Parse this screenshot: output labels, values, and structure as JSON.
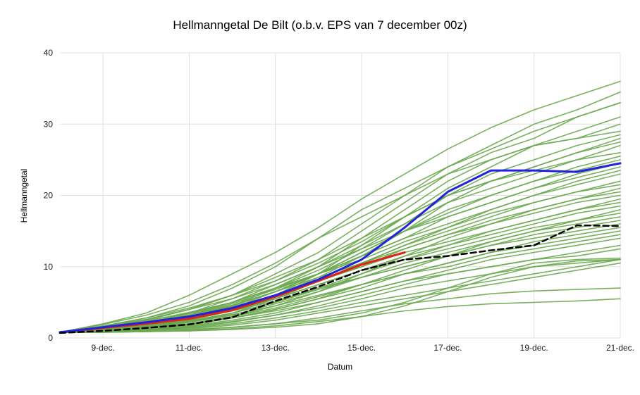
{
  "chart_data": {
    "type": "line",
    "title": "Hellmanngetal De Bilt (o.b.v. EPS van 7 december 00z)",
    "xlabel": "Datum",
    "ylabel": "Hellmanngetal",
    "xlim": [
      8,
      21
    ],
    "ylim": [
      0,
      40
    ],
    "grid": true,
    "legend_position": "none",
    "grid_color": "#e0e0e0",
    "tick_color": "#222222",
    "x_ticks": [
      {
        "value": 9,
        "label": "9-dec."
      },
      {
        "value": 11,
        "label": "11-dec."
      },
      {
        "value": 13,
        "label": "13-dec."
      },
      {
        "value": 15,
        "label": "15-dec."
      },
      {
        "value": 17,
        "label": "17-dec."
      },
      {
        "value": 19,
        "label": "19-dec."
      },
      {
        "value": 21,
        "label": "21-dec."
      }
    ],
    "y_ticks": [
      0,
      10,
      20,
      30,
      40
    ],
    "x": [
      8,
      9,
      10,
      11,
      12,
      13,
      14,
      15,
      16,
      17,
      18,
      19,
      20,
      21
    ],
    "groups": {
      "ensemble": {
        "color": "#6aa84f",
        "width": 1.6,
        "opacity": 0.9
      },
      "blue": {
        "color": "#2222dd",
        "width": 3,
        "opacity": 1
      },
      "red": {
        "color": "#dd2416",
        "width": 3,
        "opacity": 1
      },
      "black": {
        "color": "#000000",
        "width": 2.5,
        "opacity": 1,
        "dash": "8,5"
      }
    },
    "series": [
      {
        "name": "ensemble-member-01",
        "group": "ensemble",
        "values": [
          0.8,
          2,
          3.5,
          6,
          9,
          12,
          15.5,
          19.5,
          23,
          26.5,
          29.5,
          32,
          34,
          36
        ]
      },
      {
        "name": "ensemble-member-02",
        "group": "ensemble",
        "values": [
          0.8,
          1.5,
          2.5,
          4,
          6,
          9,
          12,
          16,
          20,
          24,
          27,
          30,
          32,
          34.5
        ]
      },
      {
        "name": "ensemble-member-03",
        "group": "ensemble",
        "values": [
          0.8,
          1.2,
          2,
          3.5,
          5.5,
          8,
          11,
          15,
          19,
          23,
          26,
          28,
          31,
          33
        ]
      },
      {
        "name": "ensemble-member-04",
        "group": "ensemble",
        "values": [
          0.8,
          1.6,
          2.8,
          4.5,
          7,
          10,
          14,
          18,
          21,
          24,
          26.5,
          29,
          31,
          33
        ]
      },
      {
        "name": "ensemble-member-05",
        "group": "ensemble",
        "values": [
          0.8,
          1,
          1.5,
          2.5,
          4,
          6,
          9,
          13,
          17,
          21,
          24,
          27,
          29,
          31
        ]
      },
      {
        "name": "ensemble-member-06",
        "group": "ensemble",
        "values": [
          0.8,
          1.4,
          2.2,
          3.5,
          5,
          7.5,
          10,
          14,
          18,
          22,
          25,
          27,
          28,
          30
        ]
      },
      {
        "name": "ensemble-member-07",
        "group": "ensemble",
        "values": [
          0.8,
          1.9,
          3.2,
          5,
          7.5,
          10.5,
          14,
          17,
          20,
          23,
          25,
          27,
          28,
          29
        ]
      },
      {
        "name": "ensemble-member-08",
        "group": "ensemble",
        "values": [
          0.8,
          1.3,
          2,
          3,
          4.5,
          7,
          10,
          13,
          16,
          20,
          23,
          25,
          27,
          28.5
        ]
      },
      {
        "name": "ensemble-member-09",
        "group": "ensemble",
        "values": [
          0.8,
          1.1,
          1.8,
          2.8,
          4.2,
          6.5,
          9,
          12,
          15,
          19,
          22,
          24,
          26,
          28
        ]
      },
      {
        "name": "ensemble-member-10",
        "group": "ensemble",
        "values": [
          0.8,
          1.5,
          2.5,
          4,
          6,
          8.5,
          11,
          14,
          17,
          20,
          22,
          24,
          26,
          27.5
        ]
      },
      {
        "name": "ensemble-member-11",
        "group": "ensemble",
        "values": [
          0.8,
          1.2,
          2,
          3.2,
          5,
          7,
          9.5,
          12.5,
          16,
          19,
          21,
          23,
          25,
          27
        ]
      },
      {
        "name": "ensemble-member-12",
        "group": "ensemble",
        "values": [
          0.8,
          1.7,
          2.8,
          4.2,
          6,
          8,
          10.5,
          13.5,
          17,
          20,
          22,
          23.5,
          25,
          26
        ]
      },
      {
        "name": "ensemble-member-13",
        "group": "ensemble",
        "values": [
          0.8,
          1,
          1.6,
          2.5,
          4,
          6,
          8.5,
          11.5,
          15,
          18,
          20,
          22,
          24,
          25.5
        ]
      },
      {
        "name": "ensemble-member-14",
        "group": "ensemble",
        "values": [
          0.8,
          1.4,
          2.2,
          3.4,
          5,
          7,
          9,
          12,
          15,
          17.5,
          20,
          22,
          23.5,
          25
        ]
      },
      {
        "name": "ensemble-member-15",
        "group": "ensemble",
        "values": [
          0.8,
          1.2,
          1.9,
          3,
          4.5,
          6.5,
          9,
          11.5,
          14,
          17,
          19,
          21,
          23,
          24.5
        ]
      },
      {
        "name": "ensemble-member-16",
        "group": "ensemble",
        "values": [
          0.8,
          1.6,
          2.6,
          4,
          5.5,
          7.5,
          10,
          12.5,
          15,
          17,
          19,
          21,
          22.5,
          24
        ]
      },
      {
        "name": "ensemble-member-17",
        "group": "ensemble",
        "values": [
          0.8,
          1,
          1.5,
          2.2,
          3.5,
          5.5,
          8,
          10.5,
          13,
          15.5,
          18,
          20,
          22,
          23.5
        ]
      },
      {
        "name": "ensemble-member-18",
        "group": "ensemble",
        "values": [
          0.8,
          1.3,
          2.1,
          3.2,
          4.8,
          6.8,
          9,
          11.5,
          14,
          16,
          18,
          20,
          21.5,
          23
        ]
      },
      {
        "name": "ensemble-member-19",
        "group": "ensemble",
        "values": [
          0.8,
          1.1,
          1.7,
          2.6,
          4,
          6,
          8,
          10.5,
          13,
          15,
          17,
          19,
          20.5,
          22
        ]
      },
      {
        "name": "ensemble-member-20",
        "group": "ensemble",
        "values": [
          0.8,
          1.5,
          2.4,
          3.6,
          5,
          7,
          9,
          11,
          13.5,
          15.5,
          17.5,
          19,
          20.5,
          21.5
        ]
      },
      {
        "name": "ensemble-member-21",
        "group": "ensemble",
        "values": [
          0.8,
          0.9,
          1.3,
          2,
          3,
          4.5,
          6.5,
          9,
          11.5,
          14,
          16,
          18,
          19.5,
          21
        ]
      },
      {
        "name": "ensemble-member-22",
        "group": "ensemble",
        "values": [
          0.8,
          1.2,
          1.9,
          2.8,
          4.2,
          6,
          8,
          10,
          12.5,
          14.5,
          16.5,
          18,
          19.5,
          20.5
        ]
      },
      {
        "name": "ensemble-member-23",
        "group": "ensemble",
        "values": [
          0.8,
          1.4,
          2.2,
          3.2,
          4.6,
          6.5,
          8.5,
          10.5,
          12.5,
          14.5,
          16,
          17.5,
          19,
          20
        ]
      },
      {
        "name": "ensemble-member-24",
        "group": "ensemble",
        "values": [
          0.8,
          1,
          1.5,
          2.3,
          3.5,
          5,
          7,
          9,
          11,
          13,
          15,
          16.5,
          18,
          19.5
        ]
      },
      {
        "name": "ensemble-member-25",
        "group": "ensemble",
        "values": [
          0.8,
          1.3,
          2,
          3,
          4.4,
          6,
          8,
          10,
          12,
          13.5,
          15,
          16.5,
          18,
          19
        ]
      },
      {
        "name": "ensemble-member-26",
        "group": "ensemble",
        "values": [
          0.8,
          1.1,
          1.7,
          2.5,
          3.8,
          5.5,
          7.5,
          9.5,
          11.5,
          13,
          14.5,
          16,
          17.5,
          18.5
        ]
      },
      {
        "name": "ensemble-member-27",
        "group": "ensemble",
        "values": [
          0.8,
          0.9,
          1.2,
          1.8,
          2.8,
          4,
          5.5,
          7.5,
          9.5,
          11.5,
          13.5,
          15,
          16.5,
          18
        ]
      },
      {
        "name": "ensemble-member-28",
        "group": "ensemble",
        "values": [
          0.8,
          1.2,
          1.8,
          2.7,
          4,
          5.5,
          7.5,
          9.5,
          11,
          12.5,
          14,
          15.5,
          16.5,
          17.5
        ]
      },
      {
        "name": "ensemble-member-29",
        "group": "ensemble",
        "values": [
          0.8,
          1,
          1.5,
          2.2,
          3.2,
          4.8,
          6.5,
          8.5,
          10.5,
          12,
          13.5,
          15,
          16,
          17
        ]
      },
      {
        "name": "ensemble-member-30",
        "group": "ensemble",
        "values": [
          0.8,
          1.1,
          1.6,
          2.4,
          3.5,
          5,
          6.8,
          8.5,
          10,
          11.5,
          13,
          14.5,
          15.5,
          16.5
        ]
      },
      {
        "name": "ensemble-member-31",
        "group": "ensemble",
        "values": [
          0.8,
          0.9,
          1.3,
          1.9,
          2.8,
          4,
          5.5,
          7,
          9,
          10.5,
          12,
          13.5,
          14.5,
          15.5
        ]
      },
      {
        "name": "ensemble-member-32",
        "group": "ensemble",
        "values": [
          0.8,
          1.2,
          1.8,
          2.6,
          3.8,
          5.2,
          7,
          8.5,
          10,
          11.5,
          13,
          14,
          15,
          16
        ]
      },
      {
        "name": "ensemble-member-33",
        "group": "ensemble",
        "values": [
          0.8,
          1,
          1.4,
          2,
          3,
          4.2,
          5.8,
          7.5,
          9,
          10.5,
          12,
          13,
          14,
          15
        ]
      },
      {
        "name": "ensemble-member-34",
        "group": "ensemble",
        "values": [
          0.8,
          0.9,
          1.2,
          1.7,
          2.5,
          3.5,
          5,
          6.5,
          8,
          9.5,
          11,
          12,
          13,
          14
        ]
      },
      {
        "name": "ensemble-member-35",
        "group": "ensemble",
        "values": [
          0.8,
          1.1,
          1.6,
          2.3,
          3.3,
          4.5,
          6,
          7.5,
          9,
          10,
          11.5,
          12.5,
          13.5,
          14.5
        ]
      },
      {
        "name": "ensemble-member-36",
        "group": "ensemble",
        "values": [
          0.8,
          0.9,
          1.1,
          1.5,
          2.2,
          3.2,
          4.5,
          6,
          7.5,
          9,
          10,
          11,
          12,
          13
        ]
      },
      {
        "name": "ensemble-member-37",
        "group": "ensemble",
        "values": [
          0.8,
          1,
          1.4,
          2,
          2.8,
          3.8,
          5,
          6.5,
          8,
          9,
          10,
          11,
          11.5,
          12.5
        ]
      },
      {
        "name": "ensemble-member-38",
        "group": "ensemble",
        "values": [
          0.8,
          0.9,
          1.2,
          1.6,
          2.3,
          3.2,
          4.2,
          5.5,
          7,
          8,
          9,
          10,
          10.5,
          11
        ]
      },
      {
        "name": "ensemble-member-39",
        "group": "ensemble",
        "values": [
          0.8,
          0.9,
          1.1,
          1.4,
          2,
          2.8,
          3.8,
          5,
          6,
          7,
          8,
          9,
          10,
          11
        ]
      },
      {
        "name": "ensemble-member-40",
        "group": "ensemble",
        "values": [
          0.8,
          0.9,
          1,
          1.3,
          1.8,
          2.5,
          3.5,
          4.5,
          5.5,
          6.5,
          7.5,
          8.5,
          9.5,
          10.5
        ]
      },
      {
        "name": "ensemble-member-41",
        "group": "ensemble",
        "values": [
          0.8,
          0.8,
          0.9,
          1.1,
          1.5,
          2,
          2.8,
          3.8,
          4.8,
          5.5,
          6.2,
          6.6,
          6.8,
          7
        ]
      },
      {
        "name": "ensemble-member-42",
        "group": "ensemble",
        "values": [
          0.8,
          0.8,
          0.9,
          1,
          1.3,
          1.7,
          2.3,
          3,
          3.8,
          4.4,
          4.8,
          5,
          5.2,
          5.5
        ]
      },
      {
        "name": "ensemble-member-43",
        "group": "ensemble",
        "values": [
          0.8,
          0.8,
          0.9,
          1,
          1.2,
          1.5,
          2,
          3,
          4.5,
          6.5,
          8.5,
          10,
          10.8,
          11
        ]
      },
      {
        "name": "ensemble-member-44",
        "group": "ensemble",
        "values": [
          0.8,
          0.9,
          1,
          1.2,
          1.5,
          2,
          2.5,
          3.5,
          5,
          7,
          9,
          10.5,
          11,
          11.2
        ]
      },
      {
        "name": "red-line",
        "group": "red",
        "x": [
          8,
          9,
          10,
          11,
          12,
          13,
          14,
          15,
          16
        ],
        "values": [
          0.8,
          1.4,
          2,
          2.7,
          3.9,
          5.8,
          8,
          10.3,
          12
        ]
      },
      {
        "name": "blue-line",
        "group": "blue",
        "values": [
          0.8,
          1.5,
          2.2,
          3,
          4.2,
          6,
          8.2,
          11,
          15.5,
          20.5,
          23.5,
          23.5,
          23.3,
          24.5
        ]
      },
      {
        "name": "black-dashed-line",
        "group": "black",
        "values": [
          0.7,
          1,
          1.4,
          1.9,
          2.9,
          5.2,
          7.2,
          9.5,
          11,
          11.5,
          12.3,
          13,
          15.8,
          15.7
        ]
      }
    ]
  }
}
